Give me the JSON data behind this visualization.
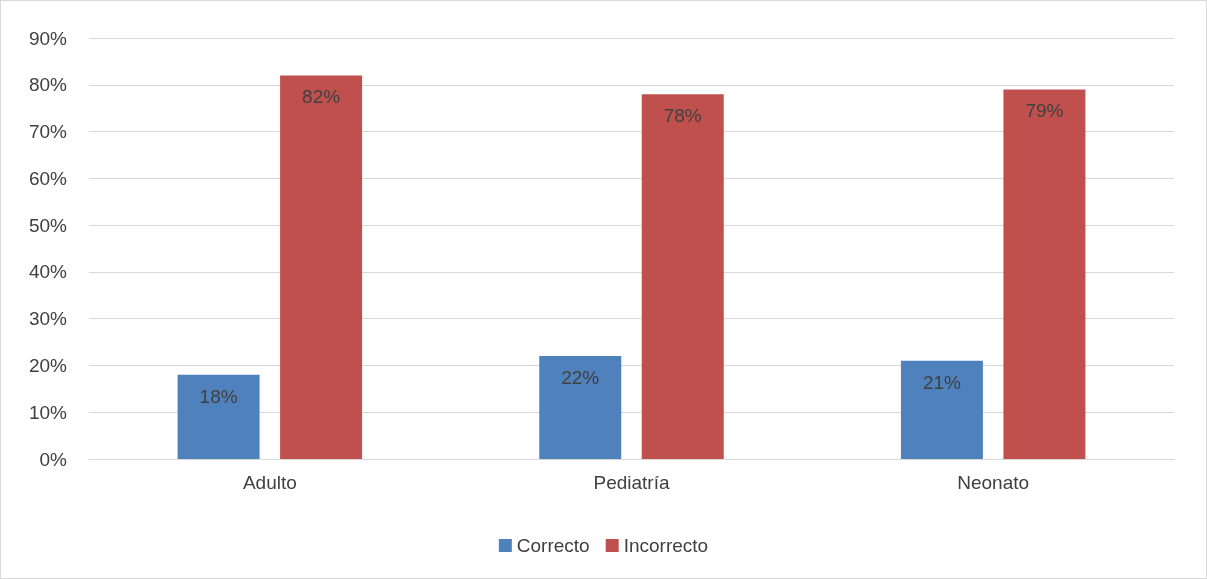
{
  "chart_data": {
    "type": "bar",
    "categories": [
      "Adulto",
      "Pediatría",
      "Neonato"
    ],
    "series": [
      {
        "name": "Correcto",
        "color": "#4f81bd",
        "values": [
          18,
          22,
          21
        ],
        "value_labels": [
          "18%",
          "22%",
          "21%"
        ]
      },
      {
        "name": "Incorrecto",
        "color": "#c0504d",
        "values": [
          82,
          78,
          79
        ],
        "value_labels": [
          "82%",
          "78%",
          "79%"
        ]
      }
    ],
    "ylim": [
      0,
      90
    ],
    "yticks": [
      {
        "value": 0,
        "label": "0%"
      },
      {
        "value": 10,
        "label": "10%"
      },
      {
        "value": 20,
        "label": "20%"
      },
      {
        "value": 30,
        "label": "30%"
      },
      {
        "value": 40,
        "label": "40%"
      },
      {
        "value": 50,
        "label": "50%"
      },
      {
        "value": 60,
        "label": "60%"
      },
      {
        "value": 70,
        "label": "70%"
      },
      {
        "value": 80,
        "label": "80%"
      },
      {
        "value": 90,
        "label": "90%"
      }
    ],
    "grid": "y",
    "legend": "bottom"
  }
}
